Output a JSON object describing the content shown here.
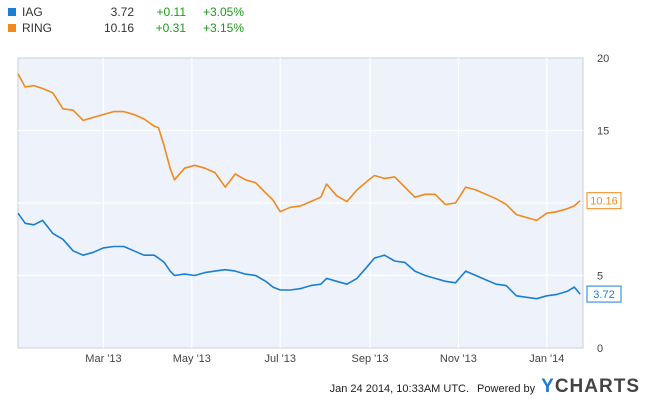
{
  "legend": [
    {
      "ticker": "IAG",
      "price": "3.72",
      "change": "+0.11",
      "pct": "+3.05%",
      "color": "#1a7fd1"
    },
    {
      "ticker": "RING",
      "price": "10.16",
      "change": "+0.31",
      "pct": "+3.15%",
      "color": "#f08a1c"
    }
  ],
  "footer": {
    "timestamp": "Jan 24 2014, 10:33AM UTC.",
    "powered_by": "Powered by",
    "brand": "YCHARTS"
  },
  "chart_data": {
    "type": "line",
    "x_ticks": [
      "Mar '13",
      "May '13",
      "Jul '13",
      "Sep '13",
      "Nov '13",
      "Jan '14"
    ],
    "y_ticks": [
      "0",
      "5",
      "10",
      "15",
      "20"
    ],
    "ylim": [
      0,
      20
    ],
    "grid": true,
    "legend_position": "top-left",
    "plot_background": "#eef2fb",
    "series": [
      {
        "name": "RING",
        "color": "#f08a1c",
        "end_label": "10.16",
        "x": [
          "2013-01-01",
          "2013-01-06",
          "2013-01-12",
          "2013-01-18",
          "2013-01-25",
          "2013-02-01",
          "2013-02-08",
          "2013-02-15",
          "2013-02-22",
          "2013-03-01",
          "2013-03-08",
          "2013-03-15",
          "2013-03-22",
          "2013-03-29",
          "2013-04-05",
          "2013-04-08",
          "2013-04-12",
          "2013-04-16",
          "2013-04-19",
          "2013-04-26",
          "2013-05-03",
          "2013-05-10",
          "2013-05-17",
          "2013-05-24",
          "2013-05-31",
          "2013-06-07",
          "2013-06-14",
          "2013-06-21",
          "2013-06-26",
          "2013-07-01",
          "2013-07-08",
          "2013-07-15",
          "2013-07-22",
          "2013-07-29",
          "2013-08-02",
          "2013-08-09",
          "2013-08-16",
          "2013-08-23",
          "2013-08-30",
          "2013-09-04",
          "2013-09-11",
          "2013-09-18",
          "2013-09-25",
          "2013-10-02",
          "2013-10-09",
          "2013-10-16",
          "2013-10-23",
          "2013-10-30",
          "2013-11-06",
          "2013-11-13",
          "2013-11-20",
          "2013-11-27",
          "2013-12-04",
          "2013-12-11",
          "2013-12-18",
          "2013-12-25",
          "2014-01-01",
          "2014-01-08",
          "2014-01-15",
          "2014-01-20",
          "2014-01-24"
        ],
        "values": [
          18.9,
          18.0,
          18.1,
          17.9,
          17.6,
          16.5,
          16.4,
          15.7,
          15.9,
          16.1,
          16.3,
          16.3,
          16.1,
          15.8,
          15.3,
          15.2,
          13.9,
          12.4,
          11.6,
          12.4,
          12.6,
          12.4,
          12.1,
          11.1,
          12.0,
          11.6,
          11.4,
          10.7,
          10.2,
          9.4,
          9.7,
          9.8,
          10.1,
          10.4,
          11.3,
          10.5,
          10.1,
          10.9,
          11.5,
          11.9,
          11.7,
          11.8,
          11.1,
          10.4,
          10.6,
          10.6,
          9.9,
          10.0,
          11.1,
          10.9,
          10.6,
          10.3,
          9.9,
          9.2,
          9.0,
          8.8,
          9.3,
          9.4,
          9.6,
          9.8,
          10.16
        ]
      },
      {
        "name": "IAG",
        "color": "#1a7fd1",
        "end_label": "3.72",
        "x": [
          "2013-01-01",
          "2013-01-06",
          "2013-01-12",
          "2013-01-18",
          "2013-01-25",
          "2013-02-01",
          "2013-02-08",
          "2013-02-15",
          "2013-02-22",
          "2013-03-01",
          "2013-03-08",
          "2013-03-15",
          "2013-03-22",
          "2013-03-29",
          "2013-04-05",
          "2013-04-08",
          "2013-04-12",
          "2013-04-16",
          "2013-04-19",
          "2013-04-26",
          "2013-05-03",
          "2013-05-10",
          "2013-05-17",
          "2013-05-24",
          "2013-05-31",
          "2013-06-07",
          "2013-06-14",
          "2013-06-21",
          "2013-06-26",
          "2013-07-01",
          "2013-07-08",
          "2013-07-15",
          "2013-07-22",
          "2013-07-29",
          "2013-08-02",
          "2013-08-09",
          "2013-08-16",
          "2013-08-23",
          "2013-08-30",
          "2013-09-04",
          "2013-09-11",
          "2013-09-18",
          "2013-09-25",
          "2013-10-02",
          "2013-10-09",
          "2013-10-16",
          "2013-10-23",
          "2013-10-30",
          "2013-11-06",
          "2013-11-13",
          "2013-11-20",
          "2013-11-27",
          "2013-12-04",
          "2013-12-11",
          "2013-12-18",
          "2013-12-25",
          "2014-01-01",
          "2014-01-08",
          "2014-01-15",
          "2014-01-20",
          "2014-01-24"
        ],
        "values": [
          9.3,
          8.6,
          8.5,
          8.8,
          7.9,
          7.5,
          6.7,
          6.4,
          6.6,
          6.9,
          7.0,
          7.0,
          6.7,
          6.4,
          6.4,
          6.2,
          5.9,
          5.3,
          5.0,
          5.1,
          5.0,
          5.2,
          5.3,
          5.4,
          5.3,
          5.1,
          5.0,
          4.6,
          4.2,
          4.0,
          4.0,
          4.1,
          4.3,
          4.4,
          4.8,
          4.6,
          4.4,
          4.8,
          5.6,
          6.2,
          6.4,
          6.0,
          5.9,
          5.3,
          5.0,
          4.8,
          4.6,
          4.5,
          5.3,
          5.0,
          4.7,
          4.4,
          4.3,
          3.6,
          3.5,
          3.4,
          3.6,
          3.7,
          3.9,
          4.2,
          3.72
        ]
      }
    ]
  }
}
